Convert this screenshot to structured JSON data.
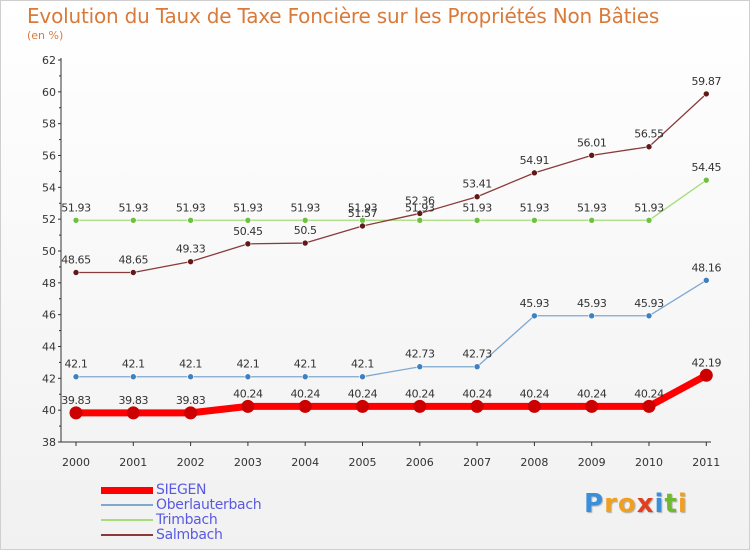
{
  "chart_data": {
    "type": "line",
    "title": "Evolution du Taux de Taxe Foncière sur les Propriétés Non Bâties",
    "unit_label": "(en %)",
    "xlabel": "",
    "ylabel": "",
    "x": [
      "2000",
      "2001",
      "2002",
      "2003",
      "2004",
      "2005",
      "2006",
      "2007",
      "2008",
      "2009",
      "2010",
      "2011"
    ],
    "ylim": [
      38,
      62
    ],
    "yticks": [
      38,
      40,
      42,
      44,
      46,
      48,
      50,
      52,
      54,
      56,
      58,
      60,
      62
    ],
    "grid": false,
    "legend_position": "bottom-left",
    "series": [
      {
        "name": "SIEGEN",
        "color": "#ff0000",
        "point_color": "#cc0000",
        "emphasis": true,
        "values": [
          39.83,
          39.83,
          39.83,
          40.24,
          40.24,
          40.24,
          40.24,
          40.24,
          40.24,
          40.24,
          40.24,
          42.19
        ],
        "labels": [
          "39.83",
          "39.83",
          "39.83",
          "40.24",
          "40.24",
          "40.24",
          "40.24",
          "40.24",
          "40.24",
          "40.24",
          "40.24",
          "42.19"
        ]
      },
      {
        "name": "Oberlauterbach",
        "color": "#7fa8d0",
        "point_color": "#3f80c0",
        "emphasis": false,
        "values": [
          42.1,
          42.1,
          42.1,
          42.1,
          42.1,
          42.1,
          42.73,
          42.73,
          45.93,
          45.93,
          45.93,
          48.16
        ],
        "labels": [
          "42.1",
          "42.1",
          "42.1",
          "42.1",
          "42.1",
          "42.1",
          "42.73",
          "42.73",
          "45.93",
          "45.93",
          "45.93",
          "48.16"
        ]
      },
      {
        "name": "Trimbach",
        "color": "#a6dc7a",
        "point_color": "#70c040",
        "emphasis": false,
        "values": [
          51.93,
          51.93,
          51.93,
          51.93,
          51.93,
          51.93,
          51.93,
          51.93,
          51.93,
          51.93,
          51.93,
          54.45
        ],
        "labels": [
          "51.93",
          "51.93",
          "51.93",
          "51.93",
          "51.93",
          "51.93",
          "51.93",
          "51.93",
          "51.93",
          "51.93",
          "51.93",
          "54.45"
        ]
      },
      {
        "name": "Salmbach",
        "color": "#8a3a3a",
        "point_color": "#601818",
        "emphasis": false,
        "values": [
          48.65,
          48.65,
          49.33,
          50.45,
          50.5,
          51.57,
          52.36,
          53.41,
          54.91,
          56.01,
          56.55,
          59.87
        ],
        "labels": [
          "48.65",
          "48.65",
          "49.33",
          "50.45",
          "50.5",
          "51.57",
          "52.36",
          "53.41",
          "54.91",
          "56.01",
          "56.55",
          "59.87"
        ]
      }
    ]
  },
  "logo": {
    "letters": [
      "P",
      "r",
      "o",
      "x",
      "i",
      "t",
      "i"
    ],
    "colors": [
      "#3a8fd8",
      "#f0a020",
      "#f0a020",
      "#e04020",
      "#3a8fd8",
      "#70b830",
      "#f0a020"
    ]
  }
}
